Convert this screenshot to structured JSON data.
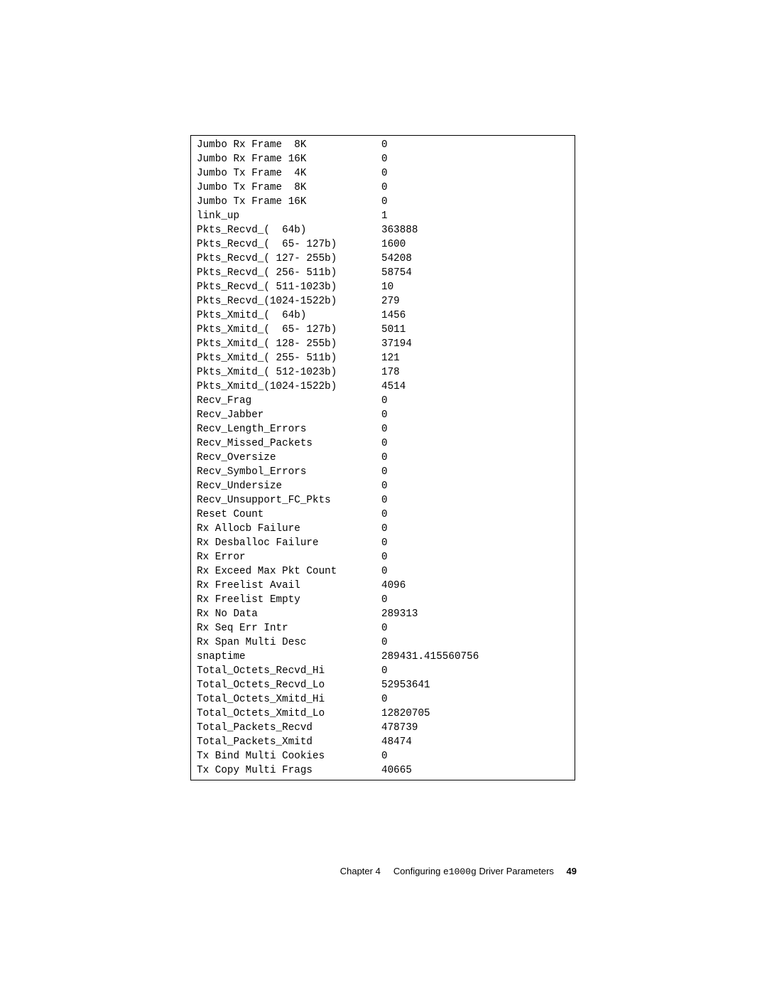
{
  "output": {
    "rows": [
      {
        "label": "Jumbo Rx Frame  8K",
        "value": "0"
      },
      {
        "label": "Jumbo Rx Frame 16K",
        "value": "0"
      },
      {
        "label": "Jumbo Tx Frame  4K",
        "value": "0"
      },
      {
        "label": "Jumbo Tx Frame  8K",
        "value": "0"
      },
      {
        "label": "Jumbo Tx Frame 16K",
        "value": "0"
      },
      {
        "label": "link_up",
        "value": "1"
      },
      {
        "label": "Pkts_Recvd_(  64b)",
        "value": "363888"
      },
      {
        "label": "Pkts_Recvd_(  65- 127b)",
        "value": "1600"
      },
      {
        "label": "Pkts_Recvd_( 127- 255b)",
        "value": "54208"
      },
      {
        "label": "Pkts_Recvd_( 256- 511b)",
        "value": "58754"
      },
      {
        "label": "Pkts_Recvd_( 511-1023b)",
        "value": "10"
      },
      {
        "label": "Pkts_Recvd_(1024-1522b)",
        "value": "279"
      },
      {
        "label": "Pkts_Xmitd_(  64b)",
        "value": "1456"
      },
      {
        "label": "Pkts_Xmitd_(  65- 127b)",
        "value": "5011"
      },
      {
        "label": "Pkts_Xmitd_( 128- 255b)",
        "value": "37194"
      },
      {
        "label": "Pkts_Xmitd_( 255- 511b)",
        "value": "121"
      },
      {
        "label": "Pkts_Xmitd_( 512-1023b)",
        "value": "178"
      },
      {
        "label": "Pkts_Xmitd_(1024-1522b)",
        "value": "4514"
      },
      {
        "label": "Recv_Frag",
        "value": "0"
      },
      {
        "label": "Recv_Jabber",
        "value": "0"
      },
      {
        "label": "Recv_Length_Errors",
        "value": "0"
      },
      {
        "label": "Recv_Missed_Packets",
        "value": "0"
      },
      {
        "label": "Recv_Oversize",
        "value": "0"
      },
      {
        "label": "Recv_Symbol_Errors",
        "value": "0"
      },
      {
        "label": "Recv_Undersize",
        "value": "0"
      },
      {
        "label": "Recv_Unsupport_FC_Pkts",
        "value": "0"
      },
      {
        "label": "Reset Count",
        "value": "0"
      },
      {
        "label": "Rx Allocb Failure",
        "value": "0"
      },
      {
        "label": "Rx Desballoc Failure",
        "value": "0"
      },
      {
        "label": "Rx Error",
        "value": "0"
      },
      {
        "label": "Rx Exceed Max Pkt Count",
        "value": "0"
      },
      {
        "label": "Rx Freelist Avail",
        "value": "4096"
      },
      {
        "label": "Rx Freelist Empty",
        "value": "0"
      },
      {
        "label": "Rx No Data",
        "value": "289313"
      },
      {
        "label": "Rx Seq Err Intr",
        "value": "0"
      },
      {
        "label": "Rx Span Multi Desc",
        "value": "0"
      },
      {
        "label": "snaptime",
        "value": "289431.415560756"
      },
      {
        "label": "Total_Octets_Recvd_Hi",
        "value": "0"
      },
      {
        "label": "Total_Octets_Recvd_Lo",
        "value": "52953641"
      },
      {
        "label": "Total_Octets_Xmitd_Hi",
        "value": "0"
      },
      {
        "label": "Total_Octets_Xmitd_Lo",
        "value": "12820705"
      },
      {
        "label": "Total_Packets_Recvd",
        "value": "478739"
      },
      {
        "label": "Total_Packets_Xmitd",
        "value": "48474"
      },
      {
        "label": "Tx Bind Multi Cookies",
        "value": "0"
      },
      {
        "label": "Tx Copy Multi Frags",
        "value": "40665"
      }
    ]
  },
  "footer": {
    "chapter_prefix": "Chapter 4",
    "title_pre": "Configuring ",
    "title_code": "e1000g",
    "title_post": " Driver Parameters",
    "page_number": "49"
  }
}
